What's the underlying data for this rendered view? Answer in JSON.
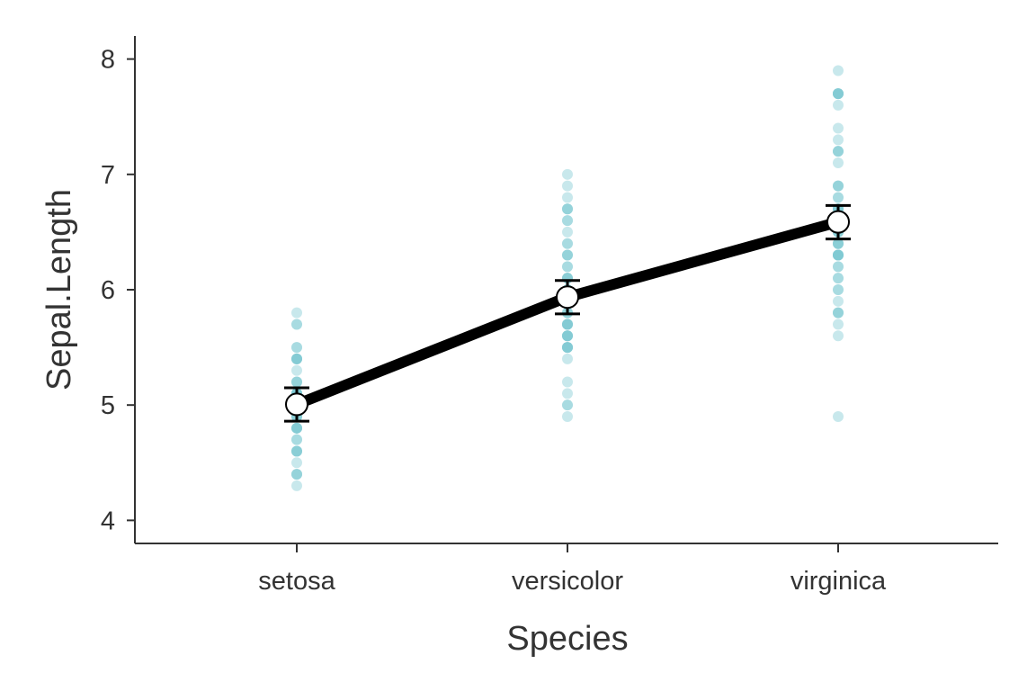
{
  "chart_data": {
    "type": "line",
    "xlabel": "Species",
    "ylabel": "Sepal.Length",
    "categories": [
      "setosa",
      "versicolor",
      "virginica"
    ],
    "ylim": [
      3.8,
      8.2
    ],
    "yticks": [
      "4",
      "5",
      "6",
      "7",
      "8"
    ],
    "grid": false,
    "legend": "none",
    "colors": {
      "raw_points": "#7cc8d2",
      "mean_line": "#000000",
      "mean_point_fill": "#ffffff",
      "axis": "#333333"
    },
    "means": [
      {
        "category": "setosa",
        "mean": 5.006,
        "lower": 4.86,
        "upper": 5.15
      },
      {
        "category": "versicolor",
        "mean": 5.936,
        "lower": 5.79,
        "upper": 6.08
      },
      {
        "category": "virginica",
        "mean": 6.588,
        "lower": 6.44,
        "upper": 6.73
      }
    ],
    "raw_values": {
      "setosa": [
        4.3,
        4.4,
        4.4,
        4.4,
        4.5,
        4.6,
        4.6,
        4.6,
        4.6,
        4.7,
        4.7,
        4.8,
        4.8,
        4.8,
        4.8,
        4.8,
        4.9,
        4.9,
        4.9,
        4.9,
        5.0,
        5.0,
        5.0,
        5.0,
        5.0,
        5.0,
        5.0,
        5.0,
        5.1,
        5.1,
        5.1,
        5.1,
        5.1,
        5.1,
        5.1,
        5.1,
        5.2,
        5.2,
        5.2,
        5.3,
        5.4,
        5.4,
        5.4,
        5.4,
        5.4,
        5.5,
        5.5,
        5.7,
        5.7,
        5.8
      ],
      "versicolor": [
        4.9,
        5.0,
        5.0,
        5.1,
        5.2,
        5.4,
        5.5,
        5.5,
        5.5,
        5.5,
        5.5,
        5.6,
        5.6,
        5.6,
        5.6,
        5.6,
        5.7,
        5.7,
        5.7,
        5.7,
        5.7,
        5.8,
        5.8,
        5.8,
        5.9,
        5.9,
        6.0,
        6.0,
        6.0,
        6.0,
        6.1,
        6.1,
        6.1,
        6.1,
        6.2,
        6.2,
        6.3,
        6.3,
        6.3,
        6.4,
        6.4,
        6.5,
        6.6,
        6.6,
        6.7,
        6.7,
        6.7,
        6.8,
        6.9,
        7.0
      ],
      "virginica": [
        4.9,
        5.6,
        5.7,
        5.8,
        5.8,
        5.8,
        5.9,
        6.0,
        6.0,
        6.1,
        6.1,
        6.2,
        6.2,
        6.3,
        6.3,
        6.3,
        6.3,
        6.3,
        6.3,
        6.4,
        6.4,
        6.4,
        6.4,
        6.5,
        6.5,
        6.5,
        6.5,
        6.7,
        6.7,
        6.7,
        6.7,
        6.7,
        6.8,
        6.8,
        6.9,
        6.9,
        6.9,
        7.1,
        7.2,
        7.2,
        7.2,
        7.3,
        7.4,
        7.6,
        7.7,
        7.7,
        7.7,
        7.7,
        7.9,
        7.7
      ]
    }
  }
}
